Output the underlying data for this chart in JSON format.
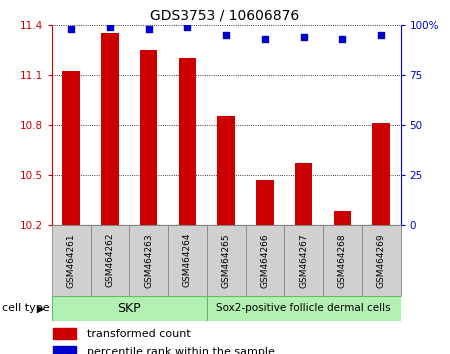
{
  "title": "GDS3753 / 10606876",
  "samples": [
    "GSM464261",
    "GSM464262",
    "GSM464263",
    "GSM464264",
    "GSM464265",
    "GSM464266",
    "GSM464267",
    "GSM464268",
    "GSM464269"
  ],
  "red_values": [
    11.12,
    11.35,
    11.25,
    11.2,
    10.85,
    10.47,
    10.57,
    10.28,
    10.81
  ],
  "blue_values": [
    98,
    99,
    98,
    99,
    95,
    93,
    94,
    93,
    95
  ],
  "ylim_left": [
    10.2,
    11.4
  ],
  "ylim_right": [
    0,
    100
  ],
  "yticks_left": [
    10.2,
    10.5,
    10.8,
    11.1,
    11.4
  ],
  "yticks_right": [
    0,
    25,
    50,
    75,
    100
  ],
  "ytick_labels_right": [
    "0",
    "25",
    "50",
    "75",
    "100%"
  ],
  "left_color": "#cc0000",
  "right_color": "#0000cc",
  "bar_color": "#cc0000",
  "dot_color": "#0000cc",
  "skp_color": "#b3f0b3",
  "sox2_color": "#b3f0b3",
  "skp_label": "SKP",
  "sox2_label": "Sox2-positive follicle dermal cells",
  "skp_range": [
    0,
    4
  ],
  "sox2_range": [
    4,
    9
  ],
  "cell_type_label": "cell type",
  "legend_red": "transformed count",
  "legend_blue": "percentile rank within the sample",
  "sample_box_color": "#d0d0d0",
  "bar_width": 0.45
}
